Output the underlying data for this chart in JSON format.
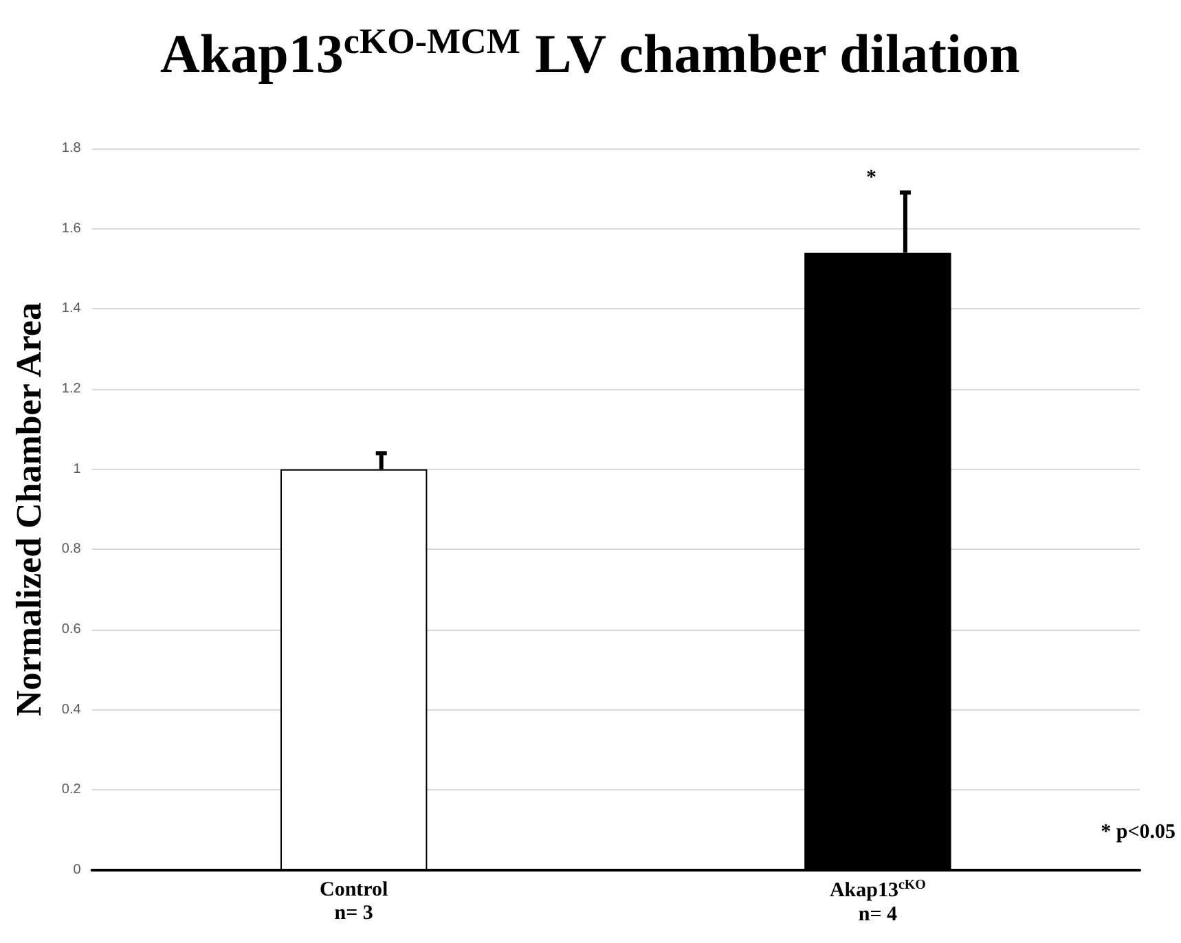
{
  "chart_data": {
    "type": "bar",
    "title": "Akap13$^{cKO-MCM}$ LV chamber dilation",
    "ylabel": "Normalized Chamber Area",
    "categories": [
      "Control\nn= 3",
      "Akap13$^{cKO}$\nn= 4"
    ],
    "values": [
      1.0,
      1.54
    ],
    "colors": [
      "#ffffff",
      "#000000"
    ],
    "errors": [
      [
        1.0,
        1.04
      ],
      [
        1.54,
        1.69
      ]
    ],
    "ylim": [
      0,
      1.8
    ],
    "yticks": [
      0,
      0.2,
      0.4,
      0.6,
      0.8,
      1,
      1.2,
      1.4,
      1.6,
      1.8
    ],
    "grid": "y",
    "annotations": [
      "*",
      "* p<0.05"
    ]
  }
}
